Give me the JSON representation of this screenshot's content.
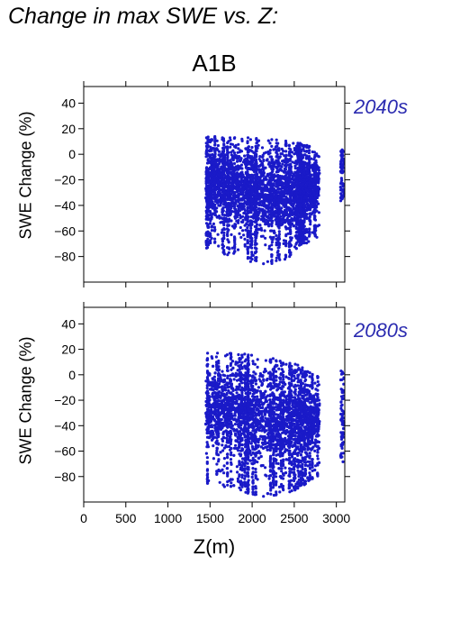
{
  "page_title": "Change in max SWE vs. Z:",
  "scenario": "A1B",
  "colors": {
    "points": "#1a1ac8",
    "period_label": "#2b2bb0"
  },
  "chart_data": {
    "type": "scatter",
    "xlabel": "Z(m)",
    "ylabel": "SWE Change (%)",
    "xlim": [
      0,
      3100
    ],
    "ylim": [
      -100,
      53
    ],
    "xticks": [
      0,
      500,
      1000,
      1500,
      2000,
      2500,
      3000
    ],
    "yticks": [
      -80,
      -60,
      -40,
      -20,
      0,
      20,
      40
    ],
    "panels": [
      {
        "period": "2040s",
        "envelope": [
          {
            "x": 1450,
            "ymin": -75,
            "ymax": 14
          },
          {
            "x": 1550,
            "ymin": -70,
            "ymax": 14
          },
          {
            "x": 1650,
            "ymin": -78,
            "ymax": 14
          },
          {
            "x": 1750,
            "ymin": -80,
            "ymax": 14
          },
          {
            "x": 1850,
            "ymin": -82,
            "ymax": 13
          },
          {
            "x": 1950,
            "ymin": -84,
            "ymax": 13
          },
          {
            "x": 2050,
            "ymin": -85,
            "ymax": 13
          },
          {
            "x": 2150,
            "ymin": -86,
            "ymax": 12
          },
          {
            "x": 2250,
            "ymin": -87,
            "ymax": 12
          },
          {
            "x": 2350,
            "ymin": -84,
            "ymax": 11
          },
          {
            "x": 2450,
            "ymin": -80,
            "ymax": 10
          },
          {
            "x": 2550,
            "ymin": -72,
            "ymax": 9
          },
          {
            "x": 2650,
            "ymin": -70,
            "ymax": 7
          },
          {
            "x": 2750,
            "ymin": -65,
            "ymax": 5
          },
          {
            "x": 3070,
            "ymin": -38,
            "ymax": 5
          }
        ]
      },
      {
        "period": "2080s",
        "envelope": [
          {
            "x": 1450,
            "ymin": -87,
            "ymax": 18
          },
          {
            "x": 1550,
            "ymin": -85,
            "ymax": 18
          },
          {
            "x": 1650,
            "ymin": -88,
            "ymax": 18
          },
          {
            "x": 1750,
            "ymin": -90,
            "ymax": 18
          },
          {
            "x": 1850,
            "ymin": -92,
            "ymax": 17
          },
          {
            "x": 1950,
            "ymin": -93,
            "ymax": 16
          },
          {
            "x": 2050,
            "ymin": -95,
            "ymax": 15
          },
          {
            "x": 2150,
            "ymin": -96,
            "ymax": 15
          },
          {
            "x": 2250,
            "ymin": -96,
            "ymax": 14
          },
          {
            "x": 2350,
            "ymin": -94,
            "ymax": 12
          },
          {
            "x": 2450,
            "ymin": -92,
            "ymax": 10
          },
          {
            "x": 2550,
            "ymin": -90,
            "ymax": 8
          },
          {
            "x": 2650,
            "ymin": -85,
            "ymax": 3
          },
          {
            "x": 2750,
            "ymin": -80,
            "ymax": 0
          },
          {
            "x": 3070,
            "ymin": -72,
            "ymax": 4
          }
        ]
      }
    ]
  }
}
